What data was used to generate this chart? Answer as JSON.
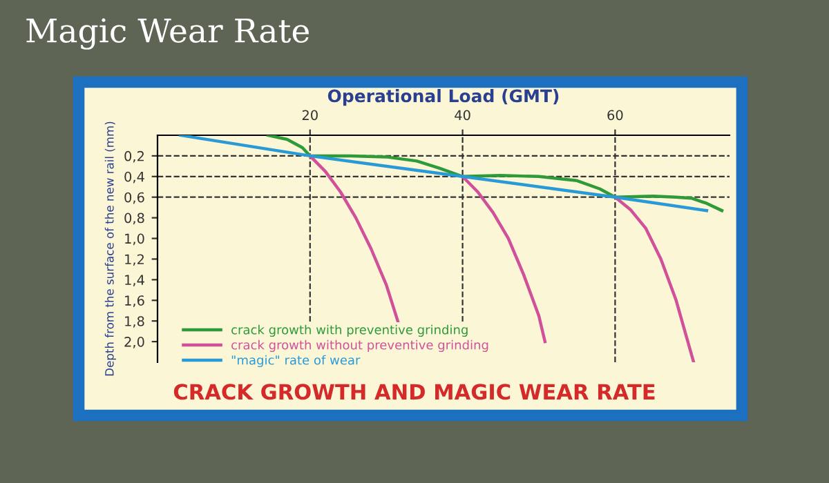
{
  "chart_data": {
    "type": "line",
    "title": "Magic Wear Rate",
    "subtitle": "CRACK GROWTH AND MAGIC WEAR RATE",
    "xlabel": "Operational Load (GMT)",
    "ylabel": "Depth from the surface of the new rail (mm)",
    "xlim": [
      0,
      75
    ],
    "xticks": [
      20,
      40,
      60
    ],
    "ylim": [
      2.2,
      0
    ],
    "yticks": [
      {
        "value": 0.2,
        "label": "0,2"
      },
      {
        "value": 0.4,
        "label": "0,4"
      },
      {
        "value": 0.6,
        "label": "0,6"
      },
      {
        "value": 0.8,
        "label": "0,8"
      },
      {
        "value": 1.0,
        "label": "1,0"
      },
      {
        "value": 1.2,
        "label": "1,2"
      },
      {
        "value": 1.4,
        "label": "1,4"
      },
      {
        "value": 1.6,
        "label": "1,6"
      },
      {
        "value": 1.8,
        "label": "1,8"
      },
      {
        "value": 2.0,
        "label": "2,0"
      }
    ],
    "grid": false,
    "legend": "bottom left",
    "ref_lines": [
      {
        "axis": "y",
        "value": 0.2,
        "color": "#333333",
        "line_style": "dashed"
      },
      {
        "axis": "y",
        "value": 0.4,
        "color": "#333333",
        "line_style": "dashed"
      },
      {
        "axis": "y",
        "value": 0.6,
        "color": "#333333",
        "line_style": "dashed"
      },
      {
        "axis": "x",
        "value": 20,
        "color": "#333333",
        "line_style": "dashed"
      },
      {
        "axis": "x",
        "value": 40,
        "color": "#333333",
        "line_style": "dashed"
      },
      {
        "axis": "x",
        "value": 60,
        "color": "#333333",
        "line_style": "dashed"
      }
    ],
    "series": [
      {
        "name": "crack growth with preventive grinding",
        "color": "#2e9a3a",
        "x": [
          14.5,
          17,
          19,
          20,
          25,
          30,
          34,
          37,
          40,
          45,
          50,
          55,
          58,
          60,
          65,
          68,
          70,
          72,
          74
        ],
        "values": [
          0,
          0.04,
          0.12,
          0.2,
          0.2,
          0.21,
          0.25,
          0.32,
          0.4,
          0.39,
          0.4,
          0.44,
          0.52,
          0.6,
          0.59,
          0.6,
          0.61,
          0.66,
          0.73
        ]
      },
      {
        "name": "crack growth without preventive grinding",
        "color": "#d0509a",
        "x": [
          20,
          22,
          24,
          26,
          28,
          30,
          31.5,
          35,
          40,
          42,
          44,
          46,
          48,
          50,
          50.8,
          55,
          60,
          62,
          64,
          66,
          68,
          70.3
        ],
        "values": [
          0.2,
          0.35,
          0.55,
          0.8,
          1.1,
          1.45,
          1.8,
          null,
          0.4,
          0.55,
          0.75,
          1.0,
          1.35,
          1.75,
          2.0,
          null,
          0.6,
          0.72,
          0.9,
          1.2,
          1.6,
          2.2
        ]
      },
      {
        "name": "\"magic\" rate of wear",
        "color": "#2a9ad6",
        "x": [
          3,
          20,
          40,
          60,
          72
        ],
        "values": [
          0,
          0.2,
          0.4,
          0.6,
          0.73
        ]
      }
    ]
  }
}
